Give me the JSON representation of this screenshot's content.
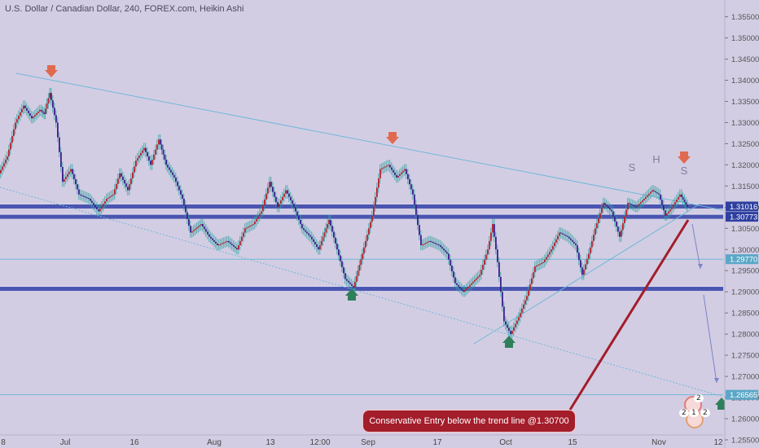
{
  "header": {
    "title": "U.S. Dollar / Canadian Dollar, 240, FOREX.com, Heikin Ashi"
  },
  "annotation": {
    "callout_text": "Conservative Entry below the trend line @1.30700"
  },
  "pattern_labels": [
    "S",
    "H",
    "S"
  ],
  "event_badges": {
    "top": "2",
    "bottom_left": "2",
    "bottom_mid": "1",
    "bottom_right": "2"
  },
  "colors": {
    "background": "#d3cde3",
    "bull_candle": "#b4212d",
    "bear_candle": "#3a1f8a",
    "wick": "#2ea3a1",
    "resistance_zone": "#3140a8",
    "sell_arrow": "#e06a4f",
    "buy_arrow": "#2f7f5b",
    "trendline_red": "#a31d2b",
    "guide_line": "#6fb8d8",
    "projection": "#7c84c9"
  },
  "chart_data": {
    "type": "candlestick",
    "title": "U.S. Dollar / Canadian Dollar, 240, FOREX.com, Heikin Ashi",
    "x_ticks": [
      "8",
      "Jul",
      "16",
      "Aug",
      "13",
      "12:00",
      "Sep",
      "17",
      "Oct",
      "15",
      "Nov",
      "12"
    ],
    "y_ticks": [
      "1.35500",
      "1.35000",
      "1.34500",
      "1.34000",
      "1.33500",
      "1.33000",
      "1.32500",
      "1.32000",
      "1.31500",
      "1.31000",
      "1.30500",
      "1.30000",
      "1.29500",
      "1.29000",
      "1.28500",
      "1.28000",
      "1.27500",
      "1.27000",
      "1.26500",
      "1.26000",
      "1.25500"
    ],
    "ylim": [
      1.255,
      1.358
    ],
    "price_labels": [
      {
        "value": 1.31016,
        "text": "1.31016"
      },
      {
        "value": 1.30773,
        "text": "1.30773"
      },
      {
        "value": 1.2977,
        "text": "1.29770"
      },
      {
        "value": 1.26565,
        "text": "1.26565"
      }
    ],
    "horizontal_levels": [
      {
        "value": 1.31016,
        "style": "zone"
      },
      {
        "value": 1.30773,
        "style": "zone"
      },
      {
        "value": 1.2977,
        "style": "thin"
      },
      {
        "value": 1.2907,
        "style": "zone"
      },
      {
        "value": 1.26565,
        "style": "thin"
      }
    ],
    "price_path": [
      [
        0,
        1.318
      ],
      [
        10,
        1.322
      ],
      [
        20,
        1.33
      ],
      [
        30,
        1.334
      ],
      [
        40,
        1.331
      ],
      [
        50,
        1.333
      ],
      [
        55,
        1.332
      ],
      [
        62,
        1.337
      ],
      [
        70,
        1.33
      ],
      [
        78,
        1.316
      ],
      [
        88,
        1.319
      ],
      [
        98,
        1.313
      ],
      [
        110,
        1.312
      ],
      [
        122,
        1.309
      ],
      [
        132,
        1.312
      ],
      [
        140,
        1.313
      ],
      [
        148,
        1.318
      ],
      [
        158,
        1.314
      ],
      [
        168,
        1.321
      ],
      [
        178,
        1.324
      ],
      [
        186,
        1.32
      ],
      [
        196,
        1.326
      ],
      [
        205,
        1.32
      ],
      [
        215,
        1.317
      ],
      [
        225,
        1.312
      ],
      [
        235,
        1.304
      ],
      [
        248,
        1.306
      ],
      [
        258,
        1.303
      ],
      [
        268,
        1.301
      ],
      [
        280,
        1.302
      ],
      [
        292,
        1.3
      ],
      [
        302,
        1.305
      ],
      [
        312,
        1.306
      ],
      [
        322,
        1.309
      ],
      [
        332,
        1.316
      ],
      [
        342,
        1.31
      ],
      [
        352,
        1.314
      ],
      [
        362,
        1.31
      ],
      [
        372,
        1.305
      ],
      [
        382,
        1.303
      ],
      [
        392,
        1.3
      ],
      [
        405,
        1.307
      ],
      [
        415,
        1.3
      ],
      [
        425,
        1.293
      ],
      [
        435,
        1.291
      ],
      [
        446,
        1.299
      ],
      [
        458,
        1.308
      ],
      [
        468,
        1.319
      ],
      [
        478,
        1.32
      ],
      [
        488,
        1.317
      ],
      [
        498,
        1.319
      ],
      [
        508,
        1.313
      ],
      [
        518,
        1.301
      ],
      [
        528,
        1.302
      ],
      [
        540,
        1.301
      ],
      [
        550,
        1.299
      ],
      [
        560,
        1.292
      ],
      [
        570,
        1.29
      ],
      [
        580,
        1.292
      ],
      [
        590,
        1.294
      ],
      [
        600,
        1.3
      ],
      [
        606,
        1.306
      ],
      [
        612,
        1.297
      ],
      [
        620,
        1.283
      ],
      [
        628,
        1.28
      ],
      [
        638,
        1.284
      ],
      [
        648,
        1.289
      ],
      [
        658,
        1.296
      ],
      [
        668,
        1.297
      ],
      [
        678,
        1.3
      ],
      [
        688,
        1.304
      ],
      [
        698,
        1.303
      ],
      [
        708,
        1.301
      ],
      [
        716,
        1.294
      ],
      [
        724,
        1.299
      ],
      [
        732,
        1.305
      ],
      [
        742,
        1.311
      ],
      [
        752,
        1.309
      ],
      [
        762,
        1.303
      ],
      [
        772,
        1.311
      ],
      [
        782,
        1.31
      ],
      [
        792,
        1.312
      ],
      [
        802,
        1.314
      ],
      [
        810,
        1.313
      ],
      [
        818,
        1.308
      ],
      [
        826,
        1.31
      ],
      [
        836,
        1.313
      ],
      [
        845,
        1.31
      ]
    ]
  }
}
